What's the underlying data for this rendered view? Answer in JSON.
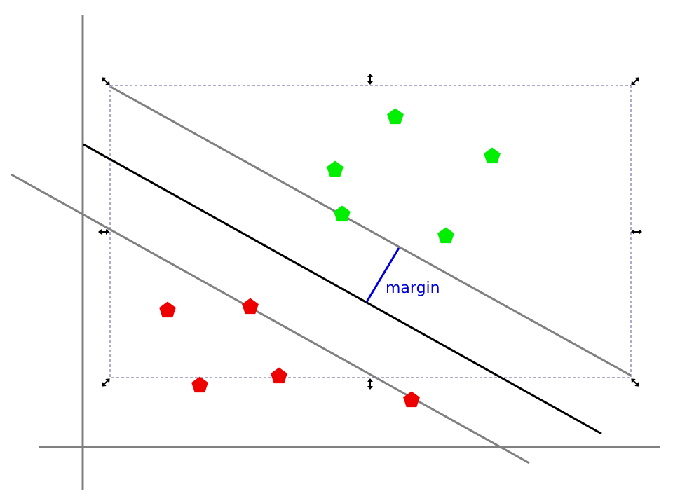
{
  "margin_label": "margin",
  "colors": {
    "axis": "#808080",
    "hyperplane": "#000000",
    "support_line": "#808080",
    "margin": "#0000dd",
    "class_positive": "#00ee00",
    "class_negative": "#ee0000",
    "selection_box": "#5a5a9a",
    "handle": "#000000"
  },
  "marker_shape": "pentagon",
  "selection_handles": "arrow-handles"
}
